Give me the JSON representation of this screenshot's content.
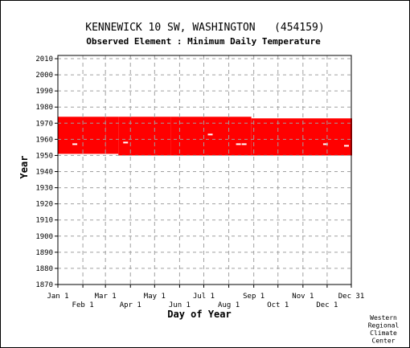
{
  "chart_data": {
    "type": "heatmap",
    "title": "KENNEWICK 10 SW, WASHINGTON   (454159)",
    "subtitle": "Observed Element : Minimum Daily Temperature",
    "xlabel": "Day of Year",
    "ylabel": "Year",
    "credit": [
      "Western",
      "Regional",
      "Climate",
      "Center"
    ],
    "xlim": [
      1,
      365
    ],
    "ylim": [
      1870,
      2012
    ],
    "grid": true,
    "colors": {
      "data": "#ff0000",
      "grid": "#a0a0a0",
      "axis": "#000000"
    },
    "x_ticks_top": [
      {
        "label": "Jan 1",
        "day": 1
      },
      {
        "label": "Mar 1",
        "day": 60
      },
      {
        "label": "May 1",
        "day": 121
      },
      {
        "label": "Jul 1",
        "day": 182
      },
      {
        "label": "Sep 1",
        "day": 244
      },
      {
        "label": "Nov 1",
        "day": 305
      },
      {
        "label": "Dec 31",
        "day": 365
      }
    ],
    "x_ticks_bottom": [
      {
        "label": "Feb 1",
        "day": 32
      },
      {
        "label": "Apr 1",
        "day": 91
      },
      {
        "label": "Jun 1",
        "day": 152
      },
      {
        "label": "Aug 1",
        "day": 213
      },
      {
        "label": "Oct 1",
        "day": 274
      },
      {
        "label": "Dec 1",
        "day": 335
      }
    ],
    "y_ticks": [
      1870,
      1880,
      1890,
      1900,
      1910,
      1920,
      1930,
      1940,
      1950,
      1960,
      1970,
      1980,
      1990,
      2000,
      2010
    ],
    "observed_periods": [
      {
        "start_day": 1,
        "end_day": 59,
        "start_year": 1951,
        "end_year": 1974
      },
      {
        "start_day": 60,
        "end_day": 75,
        "start_year": 1951,
        "end_year": 1974
      },
      {
        "start_day": 76,
        "end_day": 140,
        "start_year": 1950,
        "end_year": 1974
      },
      {
        "start_day": 141,
        "end_day": 240,
        "start_year": 1950,
        "end_year": 1974
      },
      {
        "start_day": 241,
        "end_day": 365,
        "start_year": 1950,
        "end_year": 1973
      }
    ],
    "missing_points": [
      {
        "day": 22,
        "year": 1957
      },
      {
        "day": 85,
        "year": 1958
      },
      {
        "day": 190,
        "year": 1963
      },
      {
        "day": 225,
        "year": 1957
      },
      {
        "day": 232,
        "year": 1957
      },
      {
        "day": 333,
        "year": 1957
      },
      {
        "day": 359,
        "year": 1956
      }
    ]
  }
}
